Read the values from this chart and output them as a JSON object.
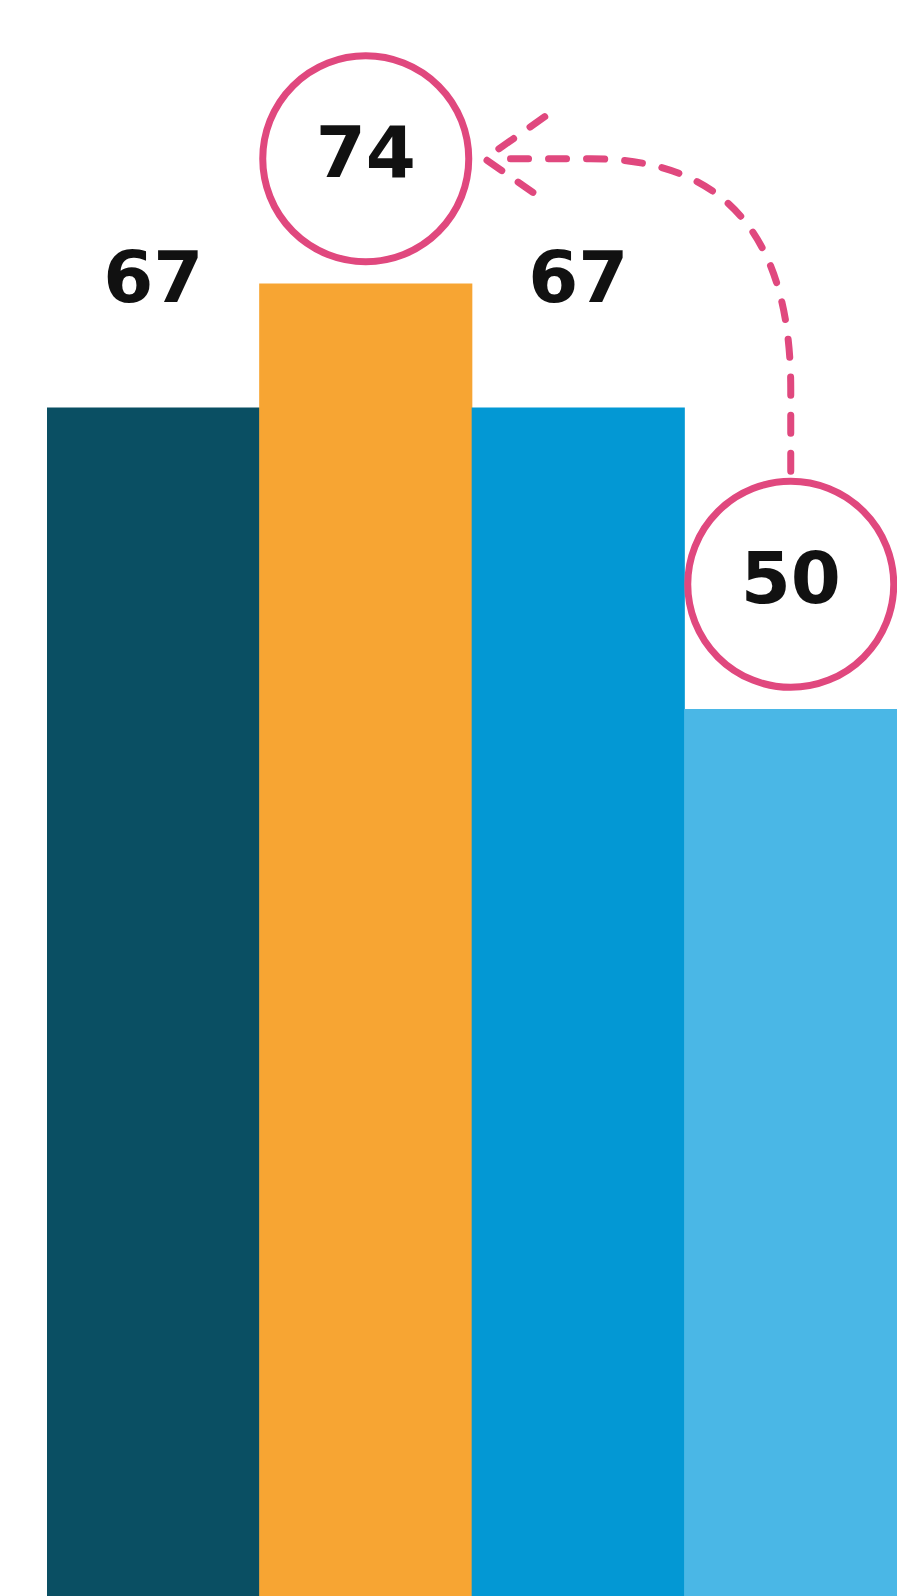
{
  "chart_data": {
    "type": "bar",
    "categories": [
      null,
      null,
      null,
      null
    ],
    "values": [
      67,
      74,
      67,
      50
    ],
    "colors": [
      "#0a4f63",
      "#f7a533",
      "#0398d4",
      "#4ab7e6"
    ],
    "data_labels": true
  }
}
